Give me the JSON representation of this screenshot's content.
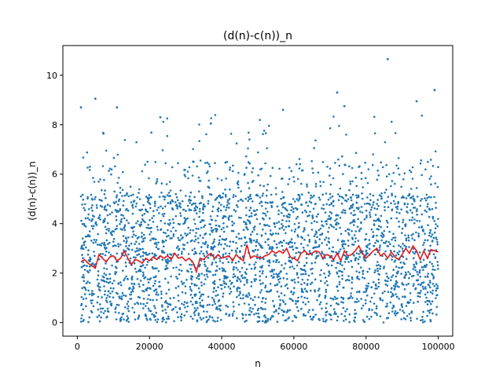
{
  "chart_data": {
    "type": "scatter",
    "title": "(d(n)-c(n))_n",
    "xlabel": "n",
    "ylabel": "(d(n)-c(n))_n",
    "xlim": [
      -4000,
      104000
    ],
    "ylim": [
      -0.55,
      11.2
    ],
    "xticks": [
      0,
      20000,
      40000,
      60000,
      80000,
      100000
    ],
    "xtick_labels": [
      "0",
      "20000",
      "40000",
      "60000",
      "80000",
      "100000"
    ],
    "yticks": [
      0,
      2,
      4,
      6,
      8,
      10
    ],
    "ytick_labels": [
      "0",
      "2",
      "4",
      "6",
      "8",
      "10"
    ],
    "grid": false,
    "colors": {
      "points": "#1f77b4",
      "line": "#e31a1c"
    },
    "scatter_points": {
      "x_range": [
        1000,
        100000
      ],
      "count": 3000,
      "bulk_range": [
        0,
        5.2
      ],
      "distribution": "dense scatter between 0 and about 5, sparser to about 9, one outlier",
      "outliers": [
        {
          "x": 1000,
          "y": 8.7
        },
        {
          "x": 5000,
          "y": 9.05
        },
        {
          "x": 11000,
          "y": 8.7
        },
        {
          "x": 23000,
          "y": 8.3
        },
        {
          "x": 37000,
          "y": 8.05
        },
        {
          "x": 57000,
          "y": 8.6
        },
        {
          "x": 72000,
          "y": 9.3
        },
        {
          "x": 74000,
          "y": 8.75
        },
        {
          "x": 86000,
          "y": 10.65
        },
        {
          "x": 94000,
          "y": 8.95
        },
        {
          "x": 99000,
          "y": 9.4
        }
      ]
    },
    "series": [
      {
        "x": [
          1000,
          2000,
          3000,
          4000,
          5000,
          6000,
          7000,
          8000,
          9000,
          10000,
          11000,
          12000,
          13000,
          14000,
          15000,
          16000,
          17000,
          18000,
          19000,
          20000,
          21000,
          22000,
          23000,
          24000,
          25000,
          26000,
          27000,
          28000,
          29000,
          30000,
          31000,
          32000,
          33000,
          34000,
          35000,
          36000,
          37000,
          38000,
          39000,
          40000,
          41000,
          42000,
          43000,
          44000,
          45000,
          46000,
          47000,
          48000,
          49000,
          50000,
          51000,
          52000,
          53000,
          54000,
          55000,
          56000,
          57000,
          58000,
          59000,
          60000,
          61000,
          62000,
          63000,
          64000,
          65000,
          66000,
          67000,
          68000,
          69000,
          70000,
          71000,
          72000,
          73000,
          74000,
          75000,
          76000,
          77000,
          78000,
          79000,
          80000,
          81000,
          82000,
          83000,
          84000,
          85000,
          86000,
          87000,
          88000,
          89000,
          90000,
          91000,
          92000,
          93000,
          94000,
          95000,
          96000,
          97000,
          98000,
          99000,
          100000
        ],
        "values": [
          2.45,
          2.55,
          2.4,
          2.3,
          2.2,
          2.75,
          2.6,
          2.45,
          2.65,
          2.7,
          2.5,
          2.6,
          2.9,
          2.6,
          2.35,
          2.55,
          2.5,
          2.4,
          2.6,
          2.5,
          2.65,
          2.55,
          2.7,
          2.6,
          2.7,
          2.55,
          2.8,
          2.6,
          2.65,
          2.5,
          2.6,
          2.45,
          2.05,
          2.6,
          2.55,
          2.7,
          2.8,
          2.6,
          2.75,
          2.6,
          2.65,
          2.7,
          2.5,
          2.75,
          2.6,
          2.5,
          3.15,
          2.6,
          2.7,
          2.65,
          2.6,
          2.7,
          2.75,
          2.9,
          2.8,
          2.9,
          2.8,
          3.0,
          2.65,
          2.6,
          2.5,
          2.8,
          2.9,
          2.75,
          2.8,
          2.9,
          2.85,
          2.6,
          2.75,
          2.7,
          2.55,
          2.8,
          2.5,
          2.9,
          2.7,
          2.75,
          2.9,
          3.1,
          2.8,
          2.6,
          2.75,
          2.9,
          3.0,
          2.7,
          2.8,
          2.6,
          2.85,
          2.65,
          2.55,
          2.75,
          3.0,
          2.8,
          3.1,
          2.9,
          2.55,
          2.9,
          2.6,
          2.95,
          2.9,
          2.85
        ]
      }
    ]
  }
}
